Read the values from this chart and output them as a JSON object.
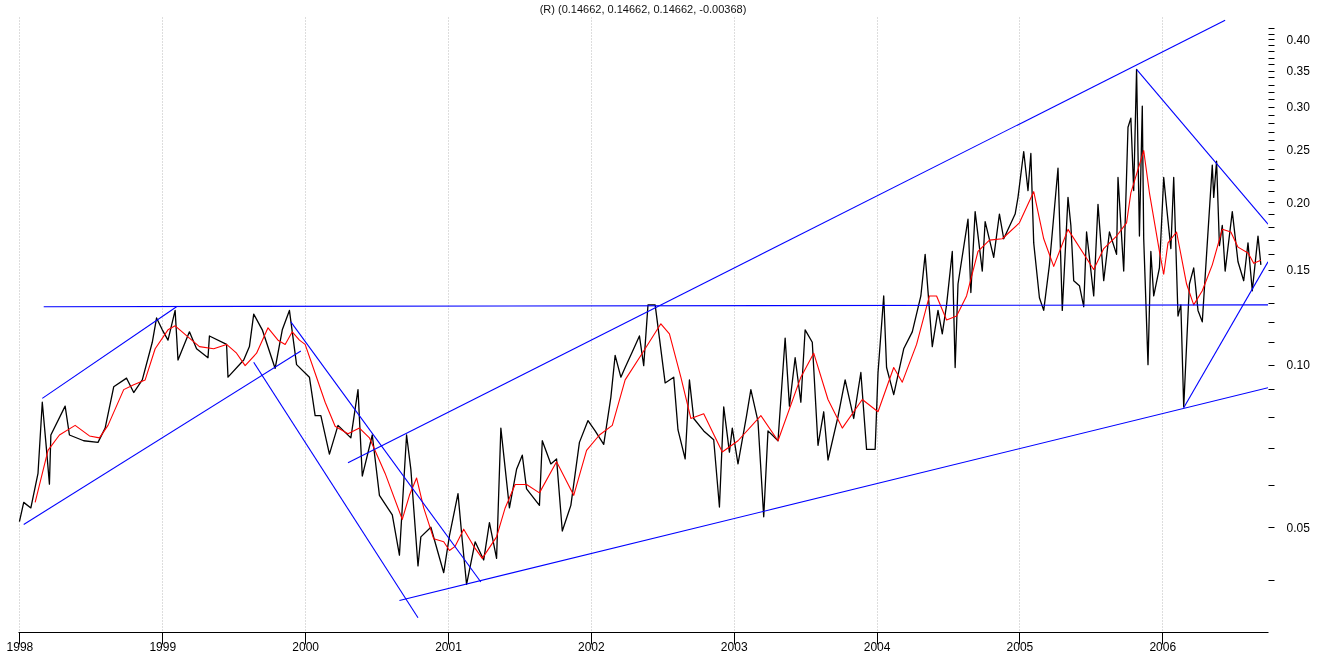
{
  "chart_data": {
    "type": "line",
    "title": "(R) (0.14662, 0.14662, 0.14662, -0.00368)",
    "log": "y",
    "grid": "x",
    "xlim": [
      1997.99,
      2006.74
    ],
    "xticks": [
      1998,
      1999,
      2000,
      2001,
      2002,
      2003,
      2004,
      2005,
      2006
    ],
    "ylim": [
      0.032,
      0.44
    ],
    "yticks": [
      {
        "value": 0.04,
        "label": null
      },
      0.05,
      {
        "value": 0.06,
        "label": null
      },
      {
        "value": 0.07,
        "label": null
      },
      {
        "value": 0.08,
        "label": null
      },
      {
        "value": 0.09,
        "label": null
      },
      {
        "value": 0.1,
        "label": "0.10"
      },
      {
        "value": 0.11,
        "label": null
      },
      {
        "value": 0.12,
        "label": null
      },
      {
        "value": 0.13,
        "label": null
      },
      {
        "value": 0.14,
        "label": null
      },
      0.15,
      {
        "value": 0.16,
        "label": null
      },
      {
        "value": 0.17,
        "label": null
      },
      {
        "value": 0.18,
        "label": null
      },
      {
        "value": 0.19,
        "label": null
      },
      {
        "value": 0.2,
        "label": "0.20"
      },
      {
        "value": 0.21,
        "label": null
      },
      {
        "value": 0.22,
        "label": null
      },
      {
        "value": 0.23,
        "label": null
      },
      {
        "value": 0.24,
        "label": null
      },
      0.25,
      {
        "value": 0.26,
        "label": null
      },
      {
        "value": 0.27,
        "label": null
      },
      {
        "value": 0.28,
        "label": null
      },
      {
        "value": 0.29,
        "label": null
      },
      {
        "value": 0.3,
        "label": "0.30"
      },
      {
        "value": 0.31,
        "label": null
      },
      {
        "value": 0.32,
        "label": null
      },
      {
        "value": 0.33,
        "label": null
      },
      {
        "value": 0.34,
        "label": null
      },
      0.35,
      {
        "value": 0.36,
        "label": null
      },
      {
        "value": 0.37,
        "label": null
      },
      {
        "value": 0.38,
        "label": null
      },
      {
        "value": 0.39,
        "label": null
      },
      {
        "value": 0.4,
        "label": "0.40"
      },
      {
        "value": 0.41,
        "label": null
      },
      {
        "value": 0.42,
        "label": null
      }
    ],
    "series": [
      {
        "color": "#000000",
        "x": [
          1998.0,
          1998.03,
          1998.08,
          1998.13,
          1998.16,
          1998.19,
          1998.21,
          1998.22,
          1998.32,
          1998.35,
          1998.45,
          1998.55,
          1998.6,
          1998.66,
          1998.75,
          1998.8,
          1998.86,
          1998.93,
          1998.96,
          1999.0,
          1999.04,
          1999.09,
          1999.11,
          1999.19,
          1999.24,
          1999.32,
          1999.33,
          1999.45,
          1999.46,
          1999.57,
          1999.61,
          1999.64,
          1999.7,
          1999.79,
          1999.84,
          1999.89,
          1999.94,
          2000.03,
          2000.07,
          2000.11,
          2000.17,
          2000.23,
          2000.32,
          2000.37,
          2000.4,
          2000.47,
          2000.52,
          2000.61,
          2000.66,
          2000.71,
          2000.74,
          2000.79,
          2000.81,
          2000.88,
          2000.97,
          2001.01,
          2001.07,
          2001.1,
          2001.13,
          2001.19,
          2001.25,
          2001.29,
          2001.34,
          2001.37,
          2001.43,
          2001.48,
          2001.52,
          2001.55,
          2001.64,
          2001.66,
          2001.72,
          2001.76,
          2001.8,
          2001.86,
          2001.92,
          2001.98,
          2002.03,
          2002.09,
          2002.14,
          2002.17,
          2002.21,
          2002.24,
          2002.3,
          2002.34,
          2002.37,
          2002.4,
          2002.45,
          2002.48,
          2002.52,
          2002.58,
          2002.61,
          2002.66,
          2002.69,
          2002.72,
          2002.79,
          2002.86,
          2002.9,
          2002.93,
          2002.97,
          2002.99,
          2003.03,
          2003.09,
          2003.12,
          2003.17,
          2003.21,
          2003.24,
          2003.31,
          2003.36,
          2003.39,
          2003.43,
          2003.47,
          2003.5,
          2003.55,
          2003.59,
          2003.63,
          2003.66,
          2003.73,
          2003.78,
          2003.84,
          2003.89,
          2003.93,
          2003.99,
          2004.01,
          2004.05,
          2004.07,
          2004.12,
          2004.19,
          2004.25,
          2004.31,
          2004.34,
          2004.39,
          2004.43,
          2004.46,
          2004.49,
          2004.53,
          2004.55,
          2004.57,
          2004.64,
          2004.66,
          2004.69,
          2004.74,
          2004.76,
          2004.82,
          2004.86,
          2004.89,
          2004.97,
          2004.99,
          2005.03,
          2005.06,
          2005.08,
          2005.1,
          2005.14,
          2005.17,
          2005.21,
          2005.27,
          2005.3,
          2005.34,
          2005.36,
          2005.38,
          2005.42,
          2005.45,
          2005.47,
          2005.52,
          2005.55,
          2005.59,
          2005.63,
          2005.68,
          2005.69,
          2005.73,
          2005.76,
          2005.78,
          2005.8,
          2005.82,
          2005.84,
          2005.86,
          2005.87,
          2005.9,
          2005.92,
          2005.94,
          2005.98,
          2006.01,
          2006.03,
          2006.06,
          2006.08,
          2006.11,
          2006.13,
          2006.15,
          2006.19,
          2006.22,
          2006.25,
          2006.28,
          2006.31,
          2006.35,
          2006.36,
          2006.38,
          2006.4,
          2006.42,
          2006.44,
          2006.49,
          2006.53,
          2006.57,
          2006.6,
          2006.63,
          2006.67,
          2006.69
        ],
        "values": [
          0.0512,
          0.0556,
          0.0543,
          0.0629,
          0.0852,
          0.0694,
          0.0601,
          0.0741,
          0.0838,
          0.0741,
          0.0723,
          0.0718,
          0.0763,
          0.091,
          0.0944,
          0.0888,
          0.0937,
          0.11,
          0.122,
          0.116,
          0.111,
          0.126,
          0.102,
          0.115,
          0.107,
          0.103,
          0.113,
          0.109,
          0.0948,
          0.102,
          0.108,
          0.124,
          0.116,
          0.0984,
          0.116,
          0.126,
          0.1,
          0.0948,
          0.0805,
          0.0805,
          0.0683,
          0.0772,
          0.0732,
          0.0899,
          0.0622,
          0.0741,
          0.0573,
          0.0527,
          0.0444,
          0.0741,
          0.064,
          0.0424,
          0.048,
          0.05,
          0.0412,
          0.0482,
          0.0577,
          0.0472,
          0.0392,
          0.047,
          0.0435,
          0.051,
          0.0438,
          0.0763,
          0.0543,
          0.064,
          0.068,
          0.0589,
          0.0549,
          0.0723,
          0.0655,
          0.0669,
          0.0492,
          0.0549,
          0.0718,
          0.0788,
          0.0754,
          0.0712,
          0.087,
          0.104,
          0.0948,
          0.0988,
          0.107,
          0.113,
          0.0996,
          0.129,
          0.129,
          0.112,
          0.0925,
          0.0948,
          0.0757,
          0.0669,
          0.0937,
          0.0795,
          0.0754,
          0.0726,
          0.0545,
          0.0835,
          0.0689,
          0.0763,
          0.0655,
          0.0805,
          0.0899,
          0.0785,
          0.0523,
          0.0754,
          0.0723,
          0.112,
          0.0838,
          0.103,
          0.0852,
          0.116,
          0.11,
          0.0709,
          0.0818,
          0.0666,
          0.0801,
          0.0937,
          0.0795,
          0.0967,
          0.0697,
          0.0697,
          0.0965,
          0.134,
          0.0988,
          0.088,
          0.107,
          0.115,
          0.134,
          0.16,
          0.108,
          0.126,
          0.114,
          0.129,
          0.162,
          0.0988,
          0.141,
          0.186,
          0.136,
          0.192,
          0.149,
          0.184,
          0.158,
          0.19,
          0.171,
          0.19,
          0.204,
          0.248,
          0.21,
          0.246,
          0.168,
          0.133,
          0.126,
          0.153,
          0.231,
          0.126,
          0.204,
          0.181,
          0.143,
          0.14,
          0.128,
          0.176,
          0.134,
          0.198,
          0.143,
          0.176,
          0.16,
          0.222,
          0.149,
          0.275,
          0.286,
          0.21,
          0.352,
          0.173,
          0.301,
          0.171,
          0.1,
          0.162,
          0.134,
          0.151,
          0.222,
          0.196,
          0.164,
          0.222,
          0.123,
          0.129,
          0.0835,
          0.141,
          0.151,
          0.126,
          0.12,
          0.16,
          0.234,
          0.204,
          0.238,
          0.166,
          0.181,
          0.149,
          0.192,
          0.155,
          0.143,
          0.168,
          0.137,
          0.173,
          0.153
        ]
      },
      {
        "color": "#ff0000",
        "x": [
          1998.11,
          1998.2,
          1998.28,
          1998.39,
          1998.49,
          1998.56,
          1998.62,
          1998.73,
          1998.8,
          1998.88,
          1998.95,
          1999.04,
          1999.09,
          1999.19,
          1999.26,
          1999.36,
          1999.45,
          1999.52,
          1999.58,
          1999.66,
          1999.74,
          1999.81,
          1999.86,
          1999.91,
          1999.96,
          2000.0,
          2000.07,
          2000.14,
          2000.21,
          2000.3,
          2000.38,
          2000.45,
          2000.56,
          2000.68,
          2000.73,
          2000.78,
          2000.83,
          2000.9,
          2000.97,
          2001.01,
          2001.05,
          2001.11,
          2001.18,
          2001.24,
          2001.34,
          2001.4,
          2001.47,
          2001.55,
          2001.64,
          2001.76,
          2001.88,
          2001.97,
          2002.06,
          2002.15,
          2002.24,
          2002.36,
          2002.49,
          2002.55,
          2002.63,
          2002.7,
          2002.79,
          2002.92,
          2003.03,
          2003.19,
          2003.31,
          2003.47,
          2003.56,
          2003.66,
          2003.76,
          2003.9,
          2004.01,
          2004.12,
          2004.18,
          2004.28,
          2004.37,
          2004.42,
          2004.49,
          2004.56,
          2004.63,
          2004.71,
          2004.79,
          2004.88,
          2005.0,
          2005.1,
          2005.17,
          2005.24,
          2005.34,
          2005.52,
          2005.59,
          2005.68,
          2005.75,
          2005.78,
          2005.87,
          2005.91,
          2005.98,
          2006.01,
          2006.04,
          2006.1,
          2006.17,
          2006.22,
          2006.28,
          2006.35,
          2006.42,
          2006.48,
          2006.53,
          2006.6,
          2006.64,
          2006.69
        ],
        "values": [
          0.0556,
          0.0694,
          0.0741,
          0.0772,
          0.0738,
          0.0732,
          0.0772,
          0.0899,
          0.0918,
          0.0937,
          0.107,
          0.116,
          0.118,
          0.112,
          0.108,
          0.107,
          0.109,
          0.105,
          0.0996,
          0.105,
          0.117,
          0.111,
          0.109,
          0.115,
          0.111,
          0.109,
          0.0964,
          0.0852,
          0.0769,
          0.0745,
          0.0763,
          0.0732,
          0.0629,
          0.0517,
          0.0573,
          0.0617,
          0.0543,
          0.0476,
          0.047,
          0.0453,
          0.0461,
          0.0496,
          0.0461,
          0.0438,
          0.048,
          0.0543,
          0.06,
          0.06,
          0.0579,
          0.0661,
          0.0573,
          0.0694,
          0.0741,
          0.0772,
          0.0937,
          0.105,
          0.119,
          0.114,
          0.0948,
          0.0795,
          0.0811,
          0.0689,
          0.0723,
          0.0805,
          0.0723,
          0.0948,
          0.105,
          0.0862,
          0.0763,
          0.0862,
          0.0818,
          0.0988,
          0.0928,
          0.109,
          0.134,
          0.134,
          0.121,
          0.123,
          0.134,
          0.162,
          0.17,
          0.171,
          0.183,
          0.209,
          0.171,
          0.152,
          0.178,
          0.15,
          0.164,
          0.173,
          0.183,
          0.208,
          0.249,
          0.208,
          0.162,
          0.147,
          0.168,
          0.176,
          0.141,
          0.129,
          0.137,
          0.153,
          0.178,
          0.176,
          0.165,
          0.161,
          0.154,
          0.156
        ]
      },
      {
        "type": "line",
        "color": "#0000ff",
        "x": [
          1998.17,
          2006.74
        ],
        "values": [
          0.128,
          0.129
        ]
      },
      {
        "type": "line",
        "color": "#0000ff",
        "x": [
          1998.16,
          1999.1
        ],
        "values": [
          0.0866,
          0.128
        ]
      },
      {
        "type": "line",
        "color": "#0000ff",
        "x": [
          1998.03,
          1999.97
        ],
        "values": [
          0.0506,
          0.106
        ]
      },
      {
        "type": "line",
        "color": "#0000ff",
        "x": [
          1999.9,
          2001.23
        ],
        "values": [
          0.12,
          0.0396
        ]
      },
      {
        "type": "line",
        "color": "#0000ff",
        "x": [
          1999.64,
          2000.79
        ],
        "values": [
          0.101,
          0.034
        ]
      },
      {
        "type": "line",
        "color": "#0000ff",
        "x": [
          2000.3,
          2006.44
        ],
        "values": [
          0.0658,
          0.434
        ]
      },
      {
        "type": "line",
        "color": "#0000ff",
        "x": [
          2000.66,
          2006.74
        ],
        "values": [
          0.0366,
          0.0906
        ]
      },
      {
        "type": "line",
        "color": "#0000ff",
        "x": [
          2006.15,
          2006.74
        ],
        "values": [
          0.0832,
          0.155
        ]
      },
      {
        "type": "line",
        "color": "#0000ff",
        "x": [
          2005.82,
          2006.74
        ],
        "values": [
          0.352,
          0.182
        ]
      }
    ]
  }
}
